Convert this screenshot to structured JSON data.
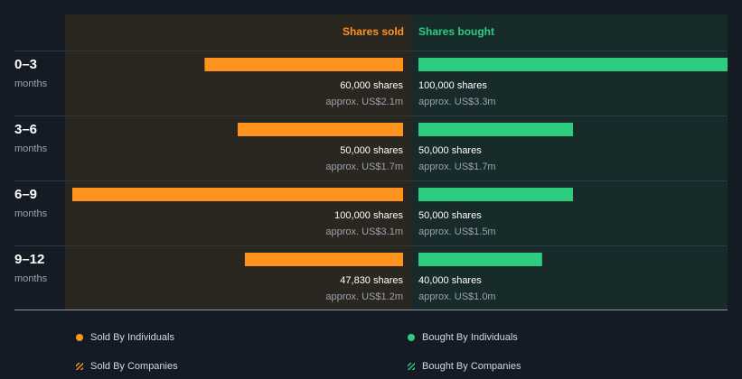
{
  "chart_data": {
    "type": "bar",
    "title": "",
    "headers": {
      "sold": "Shares sold",
      "bought": "Shares bought"
    },
    "categories": [
      {
        "period": "0–3",
        "unit": "months"
      },
      {
        "period": "3–6",
        "unit": "months"
      },
      {
        "period": "6–9",
        "unit": "months"
      },
      {
        "period": "9–12",
        "unit": "months"
      }
    ],
    "series": [
      {
        "name": "Shares sold",
        "values": [
          60000,
          50000,
          100000,
          47830
        ],
        "shares_labels": [
          "60,000 shares",
          "50,000 shares",
          "100,000 shares",
          "47,830 shares"
        ],
        "value_labels": [
          "approx. US$2.1m",
          "approx. US$1.7m",
          "approx. US$3.1m",
          "approx. US$1.2m"
        ]
      },
      {
        "name": "Shares bought",
        "values": [
          100000,
          50000,
          50000,
          40000
        ],
        "shares_labels": [
          "100,000 shares",
          "50,000 shares",
          "50,000 shares",
          "40,000 shares"
        ],
        "value_labels": [
          "approx. US$3.3m",
          "approx. US$1.7m",
          "approx. US$1.5m",
          "approx. US$1.0m"
        ]
      }
    ],
    "xlim": [
      0,
      100000
    ],
    "colors": {
      "sold": "#ff931e",
      "bought": "#2ecc7f",
      "sold_panel": "#2a2620",
      "bought_panel": "#172b2b",
      "background": "#151b24"
    }
  },
  "legend": {
    "sold_individuals": "Sold By Individuals",
    "bought_individuals": "Bought By Individuals",
    "sold_companies": "Sold By Companies",
    "bought_companies": "Bought By Companies"
  }
}
